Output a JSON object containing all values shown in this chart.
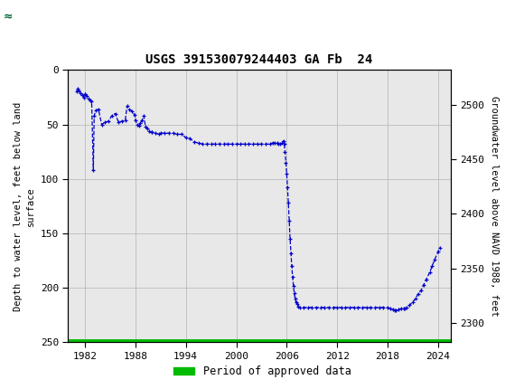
{
  "title": "USGS 391530079244403 GA Fb  24",
  "ylabel_left": "Depth to water level, feet below land\nsurface",
  "ylabel_right": "Groundwater level above NAVD 1988, feet",
  "ylim_left": [
    250,
    0
  ],
  "ylim_right": [
    2282,
    2532
  ],
  "xlim": [
    1980.0,
    2025.5
  ],
  "xticks": [
    1982,
    1988,
    1994,
    2000,
    2006,
    2012,
    2018,
    2024
  ],
  "yticks_left": [
    0,
    50,
    100,
    150,
    200,
    250
  ],
  "yticks_right": [
    2300,
    2350,
    2400,
    2450,
    2500
  ],
  "header_color": "#006633",
  "line_color": "#0000cc",
  "green_line_color": "#00bb00",
  "legend_label": "Period of approved data",
  "background_color": "#ffffff",
  "plot_bg_color": "#e8e8e8",
  "grid_color": "#bbbbbb",
  "key_points": [
    [
      1981.0,
      20
    ],
    [
      1981.15,
      17
    ],
    [
      1981.3,
      19
    ],
    [
      1981.5,
      21
    ],
    [
      1981.7,
      23
    ],
    [
      1981.85,
      25
    ],
    [
      1981.95,
      22
    ],
    [
      1982.0,
      22
    ],
    [
      1982.2,
      24
    ],
    [
      1982.4,
      26
    ],
    [
      1982.6,
      28
    ],
    [
      1982.8,
      29
    ],
    [
      1983.0,
      92
    ],
    [
      1983.1,
      42
    ],
    [
      1983.3,
      37
    ],
    [
      1983.6,
      36
    ],
    [
      1984.0,
      50
    ],
    [
      1984.4,
      48
    ],
    [
      1984.8,
      47
    ],
    [
      1985.2,
      42
    ],
    [
      1985.6,
      40
    ],
    [
      1986.0,
      48
    ],
    [
      1986.4,
      47
    ],
    [
      1986.8,
      46
    ],
    [
      1987.0,
      33
    ],
    [
      1987.3,
      36
    ],
    [
      1987.6,
      38
    ],
    [
      1987.9,
      41
    ],
    [
      1988.0,
      46
    ],
    [
      1988.2,
      50
    ],
    [
      1988.4,
      51
    ],
    [
      1988.6,
      49
    ],
    [
      1988.8,
      46
    ],
    [
      1989.0,
      42
    ],
    [
      1989.2,
      52
    ],
    [
      1989.4,
      54
    ],
    [
      1989.6,
      56
    ],
    [
      1989.9,
      57
    ],
    [
      1990.0,
      57
    ],
    [
      1990.4,
      58
    ],
    [
      1990.8,
      59
    ],
    [
      1991.0,
      58
    ],
    [
      1991.5,
      58
    ],
    [
      1992.0,
      58
    ],
    [
      1992.5,
      58
    ],
    [
      1993.0,
      59
    ],
    [
      1993.5,
      59
    ],
    [
      1994.0,
      62
    ],
    [
      1994.5,
      63
    ],
    [
      1995.0,
      66
    ],
    [
      1995.5,
      67
    ],
    [
      1996.0,
      68
    ],
    [
      1996.5,
      68
    ],
    [
      1997.0,
      68
    ],
    [
      1997.5,
      68
    ],
    [
      1998.0,
      68
    ],
    [
      1998.5,
      68
    ],
    [
      1999.0,
      68
    ],
    [
      1999.5,
      68
    ],
    [
      2000.0,
      68
    ],
    [
      2000.5,
      68
    ],
    [
      2001.0,
      68
    ],
    [
      2001.5,
      68
    ],
    [
      2002.0,
      68
    ],
    [
      2002.5,
      68
    ],
    [
      2003.0,
      68
    ],
    [
      2003.5,
      68
    ],
    [
      2004.0,
      68
    ],
    [
      2004.3,
      67
    ],
    [
      2004.6,
      67
    ],
    [
      2004.9,
      67
    ],
    [
      2005.0,
      68
    ],
    [
      2005.2,
      68
    ],
    [
      2005.4,
      67
    ],
    [
      2005.6,
      65
    ],
    [
      2005.7,
      68
    ],
    [
      2005.8,
      75
    ],
    [
      2005.9,
      85
    ],
    [
      2006.0,
      95
    ],
    [
      2006.1,
      108
    ],
    [
      2006.2,
      122
    ],
    [
      2006.3,
      138
    ],
    [
      2006.4,
      155
    ],
    [
      2006.5,
      168
    ],
    [
      2006.6,
      180
    ],
    [
      2006.7,
      190
    ],
    [
      2006.8,
      198
    ],
    [
      2006.9,
      205
    ],
    [
      2007.0,
      210
    ],
    [
      2007.1,
      213
    ],
    [
      2007.2,
      215
    ],
    [
      2007.4,
      217
    ],
    [
      2007.6,
      218
    ],
    [
      2008.0,
      218
    ],
    [
      2008.5,
      218
    ],
    [
      2009.0,
      218
    ],
    [
      2009.5,
      218
    ],
    [
      2010.0,
      218
    ],
    [
      2010.5,
      218
    ],
    [
      2011.0,
      218
    ],
    [
      2011.5,
      218
    ],
    [
      2012.0,
      218
    ],
    [
      2012.5,
      218
    ],
    [
      2013.0,
      218
    ],
    [
      2013.5,
      218
    ],
    [
      2014.0,
      218
    ],
    [
      2014.5,
      218
    ],
    [
      2015.0,
      218
    ],
    [
      2015.5,
      218
    ],
    [
      2016.0,
      218
    ],
    [
      2016.5,
      218
    ],
    [
      2017.0,
      218
    ],
    [
      2017.5,
      218
    ],
    [
      2018.0,
      218
    ],
    [
      2018.3,
      219
    ],
    [
      2018.6,
      220
    ],
    [
      2018.9,
      221
    ],
    [
      2019.0,
      221
    ],
    [
      2019.3,
      220
    ],
    [
      2019.6,
      219
    ],
    [
      2019.9,
      219
    ],
    [
      2020.0,
      219
    ],
    [
      2020.3,
      218
    ],
    [
      2020.6,
      216
    ],
    [
      2021.0,
      213
    ],
    [
      2021.3,
      210
    ],
    [
      2021.6,
      206
    ],
    [
      2022.0,
      202
    ],
    [
      2022.3,
      197
    ],
    [
      2022.6,
      192
    ],
    [
      2023.0,
      186
    ],
    [
      2023.3,
      180
    ],
    [
      2023.6,
      174
    ],
    [
      2024.0,
      167
    ],
    [
      2024.2,
      163
    ]
  ]
}
